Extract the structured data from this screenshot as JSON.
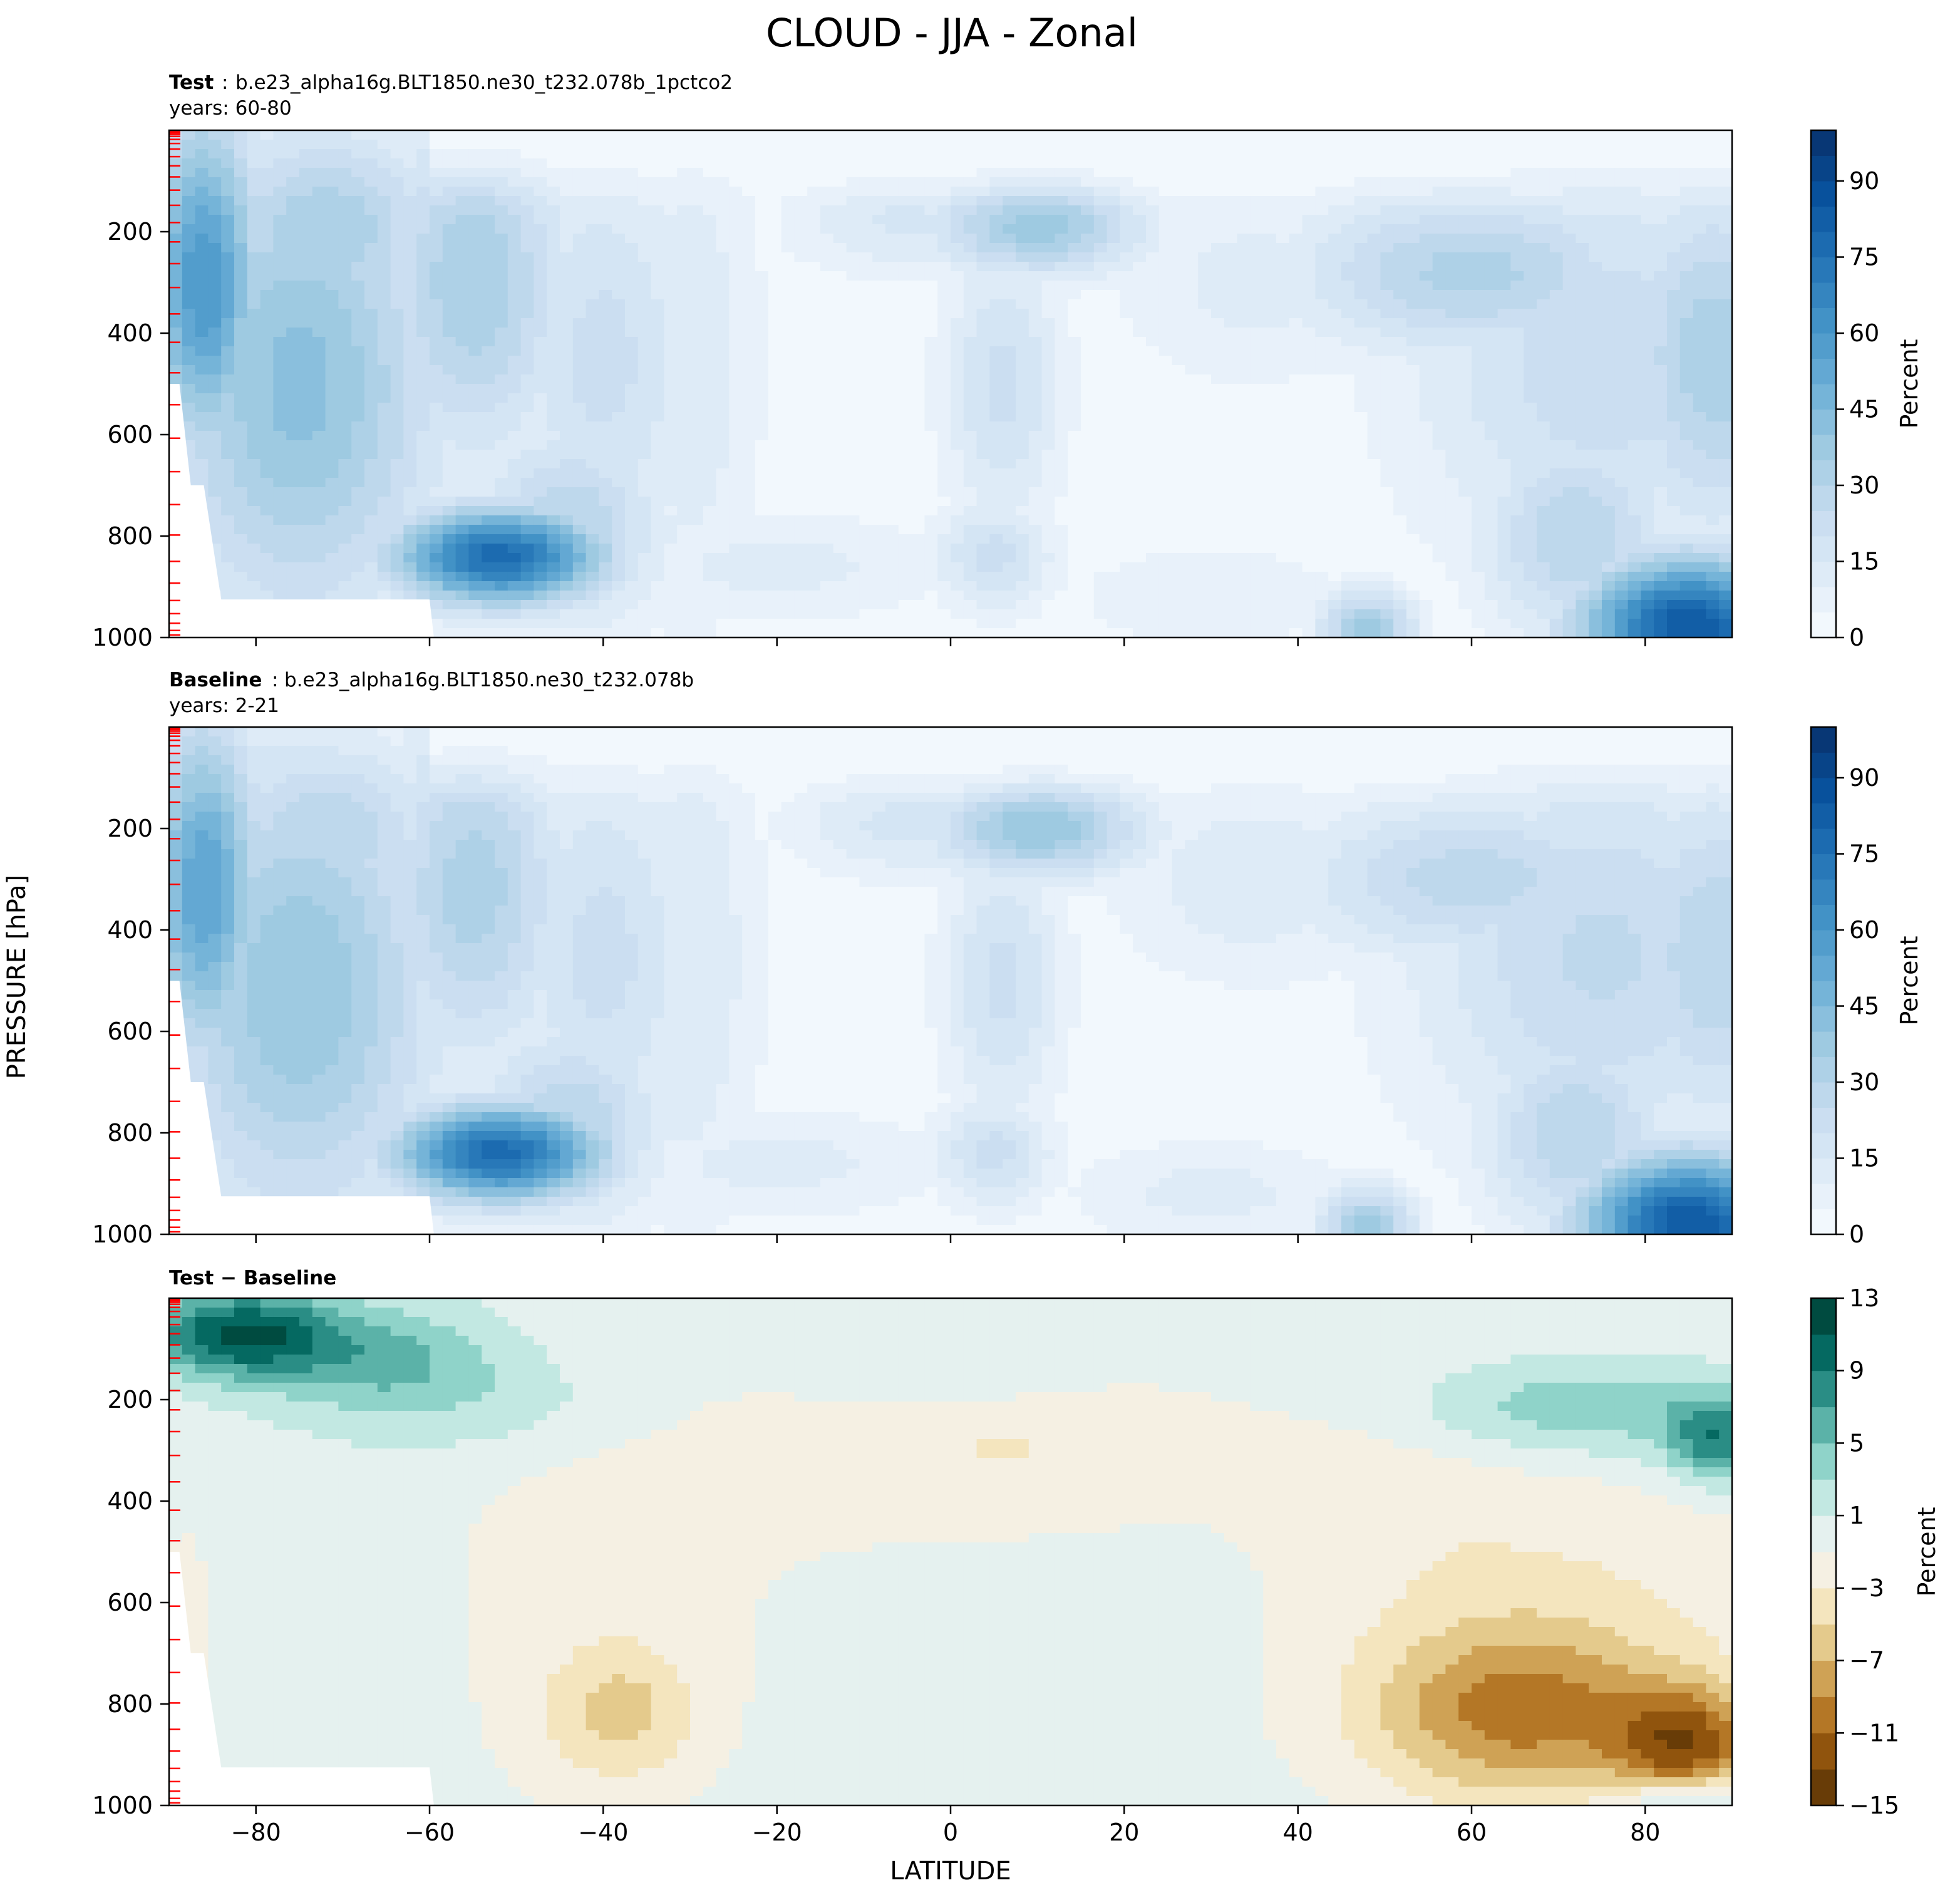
{
  "figure_title": "CLOUD - JJA - Zonal",
  "colors": {
    "blues": [
      "#f7fbff",
      "#deebf7",
      "#c6dbef",
      "#9ecae1",
      "#6baed6",
      "#4292c6",
      "#2171b5",
      "#08519c",
      "#08306b"
    ],
    "brbg": [
      "#543005",
      "#8c510a",
      "#bf812d",
      "#dfc27d",
      "#f6e8c3",
      "#f5f5f5",
      "#c7eae5",
      "#80cdc1",
      "#35978f",
      "#01665e",
      "#003c30"
    ],
    "model_level_tick": "#ff0000"
  },
  "chart_data": [
    {
      "type": "heatmap",
      "panel_id": "test",
      "caption_label": "Test",
      "caption_sep": ":",
      "caption_case": "b.e23_alpha16g.BLT1850.ne30_t232.078b_1pctco2",
      "caption_years": "years: 60-80",
      "xlabel": "",
      "ylabel": "PRESSURE [hPa]",
      "xlim": [
        -90,
        90
      ],
      "ylim": [
        1000,
        0
      ],
      "yticks": [
        "200",
        "400",
        "600",
        "800",
        "1000"
      ],
      "colorbar_label": "Percent",
      "colorbar_ticks": [
        "0",
        "15",
        "30",
        "45",
        "60",
        "75",
        "90"
      ],
      "colorbar_range": [
        0,
        100
      ],
      "colormap": "Blues",
      "features": [
        {
          "lat": -86,
          "p": 300,
          "v": 60,
          "sx": 5,
          "sp": 250
        },
        {
          "lat": -75,
          "p": 500,
          "v": 42,
          "sx": 12,
          "sp": 350
        },
        {
          "lat": -72,
          "p": 200,
          "v": 35,
          "sx": 10,
          "sp": 150
        },
        {
          "lat": -55,
          "p": 300,
          "v": 35,
          "sx": 8,
          "sp": 250
        },
        {
          "lat": -52,
          "p": 840,
          "v": 78,
          "sx": 9,
          "sp": 70
        },
        {
          "lat": -44,
          "p": 780,
          "v": 30,
          "sx": 8,
          "sp": 140
        },
        {
          "lat": -40,
          "p": 450,
          "v": 22,
          "sx": 8,
          "sp": 300
        },
        {
          "lat": -30,
          "p": 450,
          "v": 14,
          "sx": 6,
          "sp": 400
        },
        {
          "lat": -5,
          "p": 180,
          "v": 16,
          "sx": 10,
          "sp": 80
        },
        {
          "lat": 10,
          "p": 190,
          "v": 38,
          "sx": 9,
          "sp": 70
        },
        {
          "lat": 6,
          "p": 500,
          "v": 22,
          "sx": 5,
          "sp": 200
        },
        {
          "lat": 5,
          "p": 840,
          "v": 22,
          "sx": 5,
          "sp": 80
        },
        {
          "lat": -20,
          "p": 860,
          "v": 12,
          "sx": 15,
          "sp": 80
        },
        {
          "lat": 35,
          "p": 300,
          "v": 12,
          "sx": 12,
          "sp": 150
        },
        {
          "lat": 60,
          "p": 280,
          "v": 32,
          "sx": 15,
          "sp": 120
        },
        {
          "lat": 75,
          "p": 450,
          "v": 24,
          "sx": 16,
          "sp": 300
        },
        {
          "lat": 88,
          "p": 450,
          "v": 34,
          "sx": 8,
          "sp": 250
        },
        {
          "lat": 85,
          "p": 980,
          "v": 85,
          "sx": 9,
          "sp": 100
        },
        {
          "lat": 72,
          "p": 800,
          "v": 30,
          "sx": 8,
          "sp": 150
        },
        {
          "lat": 48,
          "p": 990,
          "v": 38,
          "sx": 4,
          "sp": 60
        },
        {
          "lat": 30,
          "p": 920,
          "v": 10,
          "sx": 12,
          "sp": 80
        }
      ]
    },
    {
      "type": "heatmap",
      "panel_id": "baseline",
      "caption_label": "Baseline",
      "caption_sep": ":",
      "caption_case": "b.e23_alpha16g.BLT1850.ne30_t232.078b",
      "caption_years": "years: 2-21",
      "xlabel": "",
      "ylabel": "PRESSURE [hPa]",
      "xlim": [
        -90,
        90
      ],
      "ylim": [
        1000,
        0
      ],
      "yticks": [
        "200",
        "400",
        "600",
        "800",
        "1000"
      ],
      "colorbar_label": "Percent",
      "colorbar_ticks": [
        "0",
        "15",
        "30",
        "45",
        "60",
        "75",
        "90"
      ],
      "colorbar_range": [
        0,
        100
      ],
      "colormap": "Blues",
      "features": [
        {
          "lat": -86,
          "p": 320,
          "v": 55,
          "sx": 5,
          "sp": 250
        },
        {
          "lat": -75,
          "p": 520,
          "v": 40,
          "sx": 12,
          "sp": 350
        },
        {
          "lat": -72,
          "p": 220,
          "v": 30,
          "sx": 10,
          "sp": 150
        },
        {
          "lat": -55,
          "p": 320,
          "v": 33,
          "sx": 8,
          "sp": 250
        },
        {
          "lat": -52,
          "p": 840,
          "v": 78,
          "sx": 9,
          "sp": 70
        },
        {
          "lat": -44,
          "p": 780,
          "v": 30,
          "sx": 8,
          "sp": 140
        },
        {
          "lat": -40,
          "p": 450,
          "v": 22,
          "sx": 8,
          "sp": 300
        },
        {
          "lat": -30,
          "p": 450,
          "v": 15,
          "sx": 6,
          "sp": 400
        },
        {
          "lat": -5,
          "p": 190,
          "v": 17,
          "sx": 10,
          "sp": 80
        },
        {
          "lat": 10,
          "p": 200,
          "v": 40,
          "sx": 9,
          "sp": 70
        },
        {
          "lat": 6,
          "p": 500,
          "v": 22,
          "sx": 5,
          "sp": 200
        },
        {
          "lat": 5,
          "p": 840,
          "v": 22,
          "sx": 5,
          "sp": 80
        },
        {
          "lat": -20,
          "p": 860,
          "v": 12,
          "sx": 15,
          "sp": 80
        },
        {
          "lat": 35,
          "p": 300,
          "v": 14,
          "sx": 12,
          "sp": 150
        },
        {
          "lat": 60,
          "p": 300,
          "v": 28,
          "sx": 15,
          "sp": 120
        },
        {
          "lat": 75,
          "p": 450,
          "v": 26,
          "sx": 16,
          "sp": 300
        },
        {
          "lat": 88,
          "p": 450,
          "v": 30,
          "sx": 8,
          "sp": 250
        },
        {
          "lat": 85,
          "p": 980,
          "v": 85,
          "sx": 9,
          "sp": 100
        },
        {
          "lat": 72,
          "p": 800,
          "v": 30,
          "sx": 8,
          "sp": 150
        },
        {
          "lat": 48,
          "p": 990,
          "v": 38,
          "sx": 4,
          "sp": 60
        },
        {
          "lat": 30,
          "p": 920,
          "v": 12,
          "sx": 12,
          "sp": 80
        }
      ]
    },
    {
      "type": "heatmap",
      "panel_id": "difference",
      "caption_label": "Test − Baseline",
      "caption_sep": "",
      "caption_case": "",
      "caption_years": "",
      "xlabel": "LATITUDE",
      "ylabel": "PRESSURE [hPa]",
      "xlim": [
        -90,
        90
      ],
      "ylim": [
        1000,
        0
      ],
      "xticks": [
        "−80",
        "−60",
        "−40",
        "−20",
        "0",
        "20",
        "40",
        "60",
        "80"
      ],
      "xtick_values": [
        -80,
        -60,
        -40,
        -20,
        0,
        20,
        40,
        60,
        80
      ],
      "yticks": [
        "200",
        "400",
        "600",
        "800",
        "1000"
      ],
      "colorbar_label": "Percent",
      "colorbar_ticks": [
        "−15",
        "−11",
        "−7",
        "−3",
        "1",
        "5",
        "9",
        "13"
      ],
      "colorbar_range": [
        -15,
        13
      ],
      "colormap": "BrBG",
      "features": [
        {
          "lat": -82,
          "p": 70,
          "v": 11,
          "sx": 8,
          "sp": 60
        },
        {
          "lat": -65,
          "p": 120,
          "v": 5,
          "sx": 10,
          "sp": 80
        },
        {
          "lat": -50,
          "p": 220,
          "v": 2,
          "sx": 15,
          "sp": 80
        },
        {
          "lat": 0,
          "p": 150,
          "v": 2.5,
          "sx": 12,
          "sp": 50
        },
        {
          "lat": 72,
          "p": 220,
          "v": 5,
          "sx": 14,
          "sp": 70
        },
        {
          "lat": 88,
          "p": 280,
          "v": 8,
          "sx": 4,
          "sp": 60
        },
        {
          "lat": 10,
          "p": 280,
          "v": -2.5,
          "sx": 15,
          "sp": 120
        },
        {
          "lat": -20,
          "p": 300,
          "v": -1.6,
          "sx": 20,
          "sp": 150
        },
        {
          "lat": 50,
          "p": 350,
          "v": -1.5,
          "sx": 12,
          "sp": 150
        },
        {
          "lat": -38,
          "p": 820,
          "v": -4.5,
          "sx": 6,
          "sp": 90
        },
        {
          "lat": -40,
          "p": 650,
          "v": -1.8,
          "sx": 14,
          "sp": 300
        },
        {
          "lat": 65,
          "p": 820,
          "v": -8,
          "sx": 12,
          "sp": 120
        },
        {
          "lat": 85,
          "p": 880,
          "v": -10,
          "sx": 6,
          "sp": 80
        },
        {
          "lat": 70,
          "p": 650,
          "v": -3,
          "sx": 20,
          "sp": 250
        },
        {
          "lat": 85,
          "p": 990,
          "v": 6,
          "sx": 6,
          "sp": 30
        },
        {
          "lat": -88,
          "p": 650,
          "v": -1.5,
          "sx": 3,
          "sp": 200
        }
      ]
    }
  ]
}
